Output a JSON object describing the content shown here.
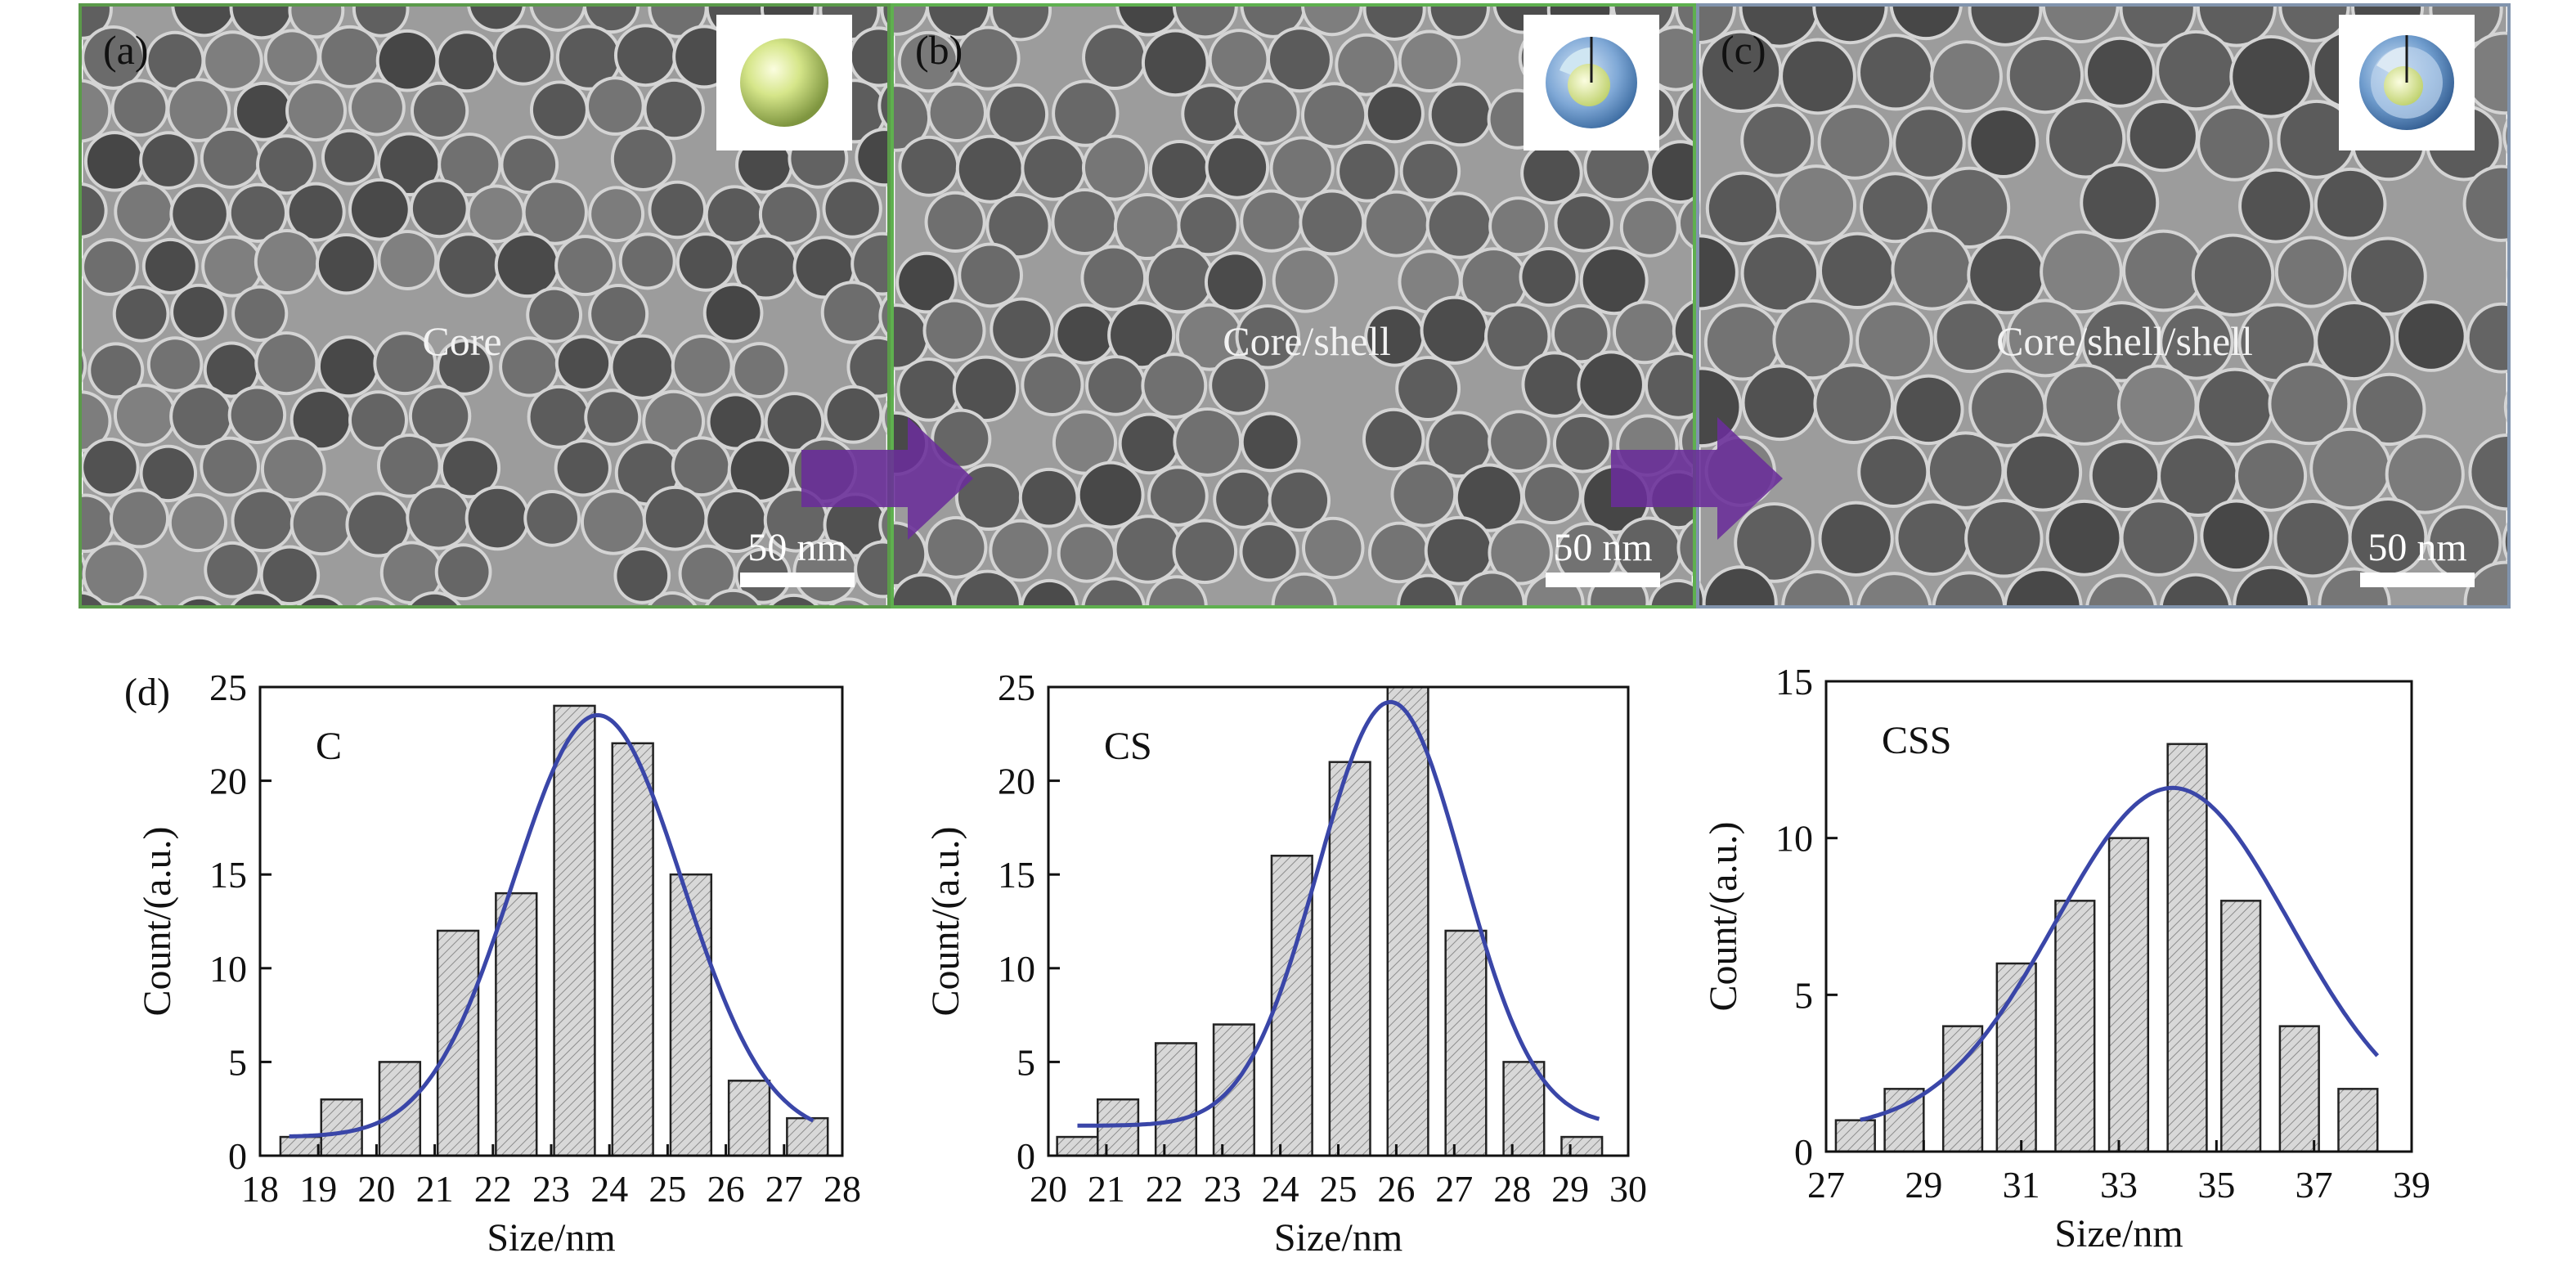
{
  "panels": [
    {
      "label": "(a)",
      "center_text": "Core",
      "scale_text": "50 nm",
      "border_color": "#5b9a4a",
      "tone": "#7c7c7c"
    },
    {
      "label": "(b)",
      "center_text": "Core/shell",
      "scale_text": "50 nm",
      "border_color": "#5fb04f",
      "tone": "#6a6a6a"
    },
    {
      "label": "(c)",
      "center_text": "Core/shell/shell",
      "scale_text": "50 nm",
      "border_color": "#8194ad",
      "tone": "#5c5c5c"
    }
  ],
  "arrow_color": "#6a2e9a",
  "fit_color": "#3a46a8",
  "bar_fill": "#d8d8d8",
  "panel_d_label": "(d)",
  "chart_data": [
    {
      "type": "bar",
      "annotation": "C",
      "xlabel": "Size/nm",
      "ylabel": "Count/(a.u.)",
      "xlim": [
        18,
        28
      ],
      "ylim": [
        0,
        25
      ],
      "xticks": [
        "18",
        "19",
        "20",
        "21",
        "22",
        "23",
        "24",
        "25",
        "26",
        "27",
        "28"
      ],
      "yticks": [
        "0",
        "5",
        "10",
        "15",
        "20",
        "25"
      ],
      "bar_centers": [
        18.7,
        19.4,
        20.4,
        21.4,
        22.4,
        23.4,
        24.4,
        25.4,
        26.4,
        27.4
      ],
      "bar_width": 0.7,
      "values": [
        1,
        3,
        5,
        12,
        14,
        24,
        22,
        15,
        4,
        2
      ],
      "fit": {
        "type": "gaussian",
        "amplitude": 22.5,
        "center": 23.8,
        "sigma": 1.45,
        "baseline": 1.0,
        "x_range": [
          18.5,
          27.5
        ]
      }
    },
    {
      "type": "bar",
      "annotation": "CS",
      "xlabel": "Size/nm",
      "ylabel": "Count/(a.u.)",
      "xlim": [
        20,
        30
      ],
      "ylim": [
        0,
        25
      ],
      "xticks": [
        "20",
        "21",
        "22",
        "23",
        "24",
        "25",
        "26",
        "27",
        "28",
        "29",
        "30"
      ],
      "yticks": [
        "0",
        "5",
        "10",
        "15",
        "20",
        "25"
      ],
      "bar_centers": [
        20.5,
        21.2,
        22.2,
        23.2,
        24.2,
        25.2,
        26.2,
        27.2,
        28.2,
        29.2
      ],
      "bar_width": 0.7,
      "values": [
        1,
        3,
        6,
        7,
        16,
        21,
        25,
        12,
        5,
        1
      ],
      "fit": {
        "type": "gaussian",
        "amplitude": 22.6,
        "center": 25.9,
        "sigma": 1.25,
        "baseline": 1.6,
        "x_range": [
          20.5,
          29.5
        ]
      }
    },
    {
      "type": "bar",
      "annotation": "CSS",
      "xlabel": "Size/nm",
      "ylabel": "Count/(a.u.)",
      "xlim": [
        27,
        39
      ],
      "ylim": [
        0,
        15
      ],
      "xticks": [
        "27",
        "29",
        "31",
        "33",
        "35",
        "37",
        "39"
      ],
      "yticks": [
        "0",
        "5",
        "10",
        "15"
      ],
      "bar_centers": [
        27.6,
        28.6,
        29.8,
        30.9,
        32.1,
        33.2,
        34.4,
        35.5,
        36.7,
        37.9
      ],
      "bar_width": 0.8,
      "values": [
        1,
        2,
        4,
        6,
        8,
        10,
        13,
        8,
        4,
        2
      ],
      "fit": {
        "type": "gaussian",
        "amplitude": 10.9,
        "center": 34.1,
        "sigma": 2.4,
        "baseline": 0.7,
        "x_range": [
          27.7,
          38.3
        ]
      }
    }
  ]
}
